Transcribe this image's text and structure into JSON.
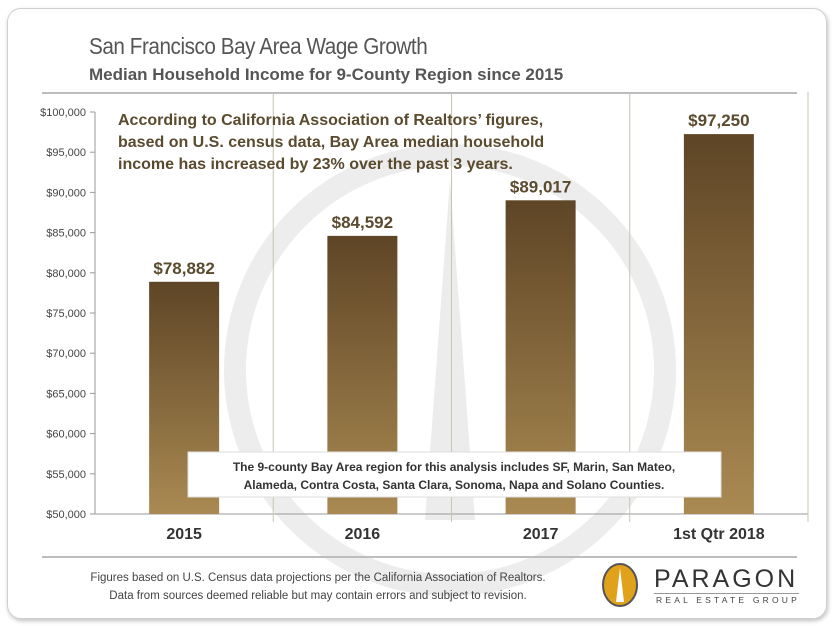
{
  "header": {
    "title": "San Francisco Bay Area Wage Growth",
    "subtitle": "Median Household Income for 9-County Region since 2015"
  },
  "chart_data": {
    "type": "bar",
    "categories": [
      "2015",
      "2016",
      "2017",
      "1st Qtr 2018"
    ],
    "values": [
      78882,
      84592,
      89017,
      97250
    ],
    "data_labels": [
      "$78,882",
      "$84,592",
      "$89,017",
      "$97,250"
    ],
    "ylim": [
      50000,
      100000
    ],
    "yticks": [
      50000,
      55000,
      60000,
      65000,
      70000,
      75000,
      80000,
      85000,
      90000,
      95000,
      100000
    ],
    "ytick_labels": [
      "$50,000",
      "$55,000",
      "$60,000",
      "$65,000",
      "$70,000",
      "$75,000",
      "$80,000",
      "$85,000",
      "$90,000",
      "$95,000",
      "$100,000"
    ],
    "grid": "vertical category separators",
    "colors": {
      "bar_top": "#5e4526",
      "bar_bottom": "#aa8a52",
      "label": "#5a4a2e"
    },
    "annotations": [
      [
        "According to California Association of Realtors’ figures,",
        "based on U.S. census data, Bay Area median household",
        "income has increased by 23% over the past 3 years."
      ],
      [
        "The 9-county Bay Area region for this analysis includes SF, Marin, San Mateo,",
        "Alameda, Contra Costa, Santa Clara, Sonoma, Napa and Solano Counties."
      ]
    ]
  },
  "footer": {
    "line1": "Figures based on U.S. Census data projections per the California Association of Realtors.",
    "line2": "Data from sources deemed reliable but may contain errors and subject to revision."
  },
  "logo": {
    "name": "PARAGON",
    "tagline": "REAL ESTATE GROUP",
    "color": "#e0a11b"
  }
}
